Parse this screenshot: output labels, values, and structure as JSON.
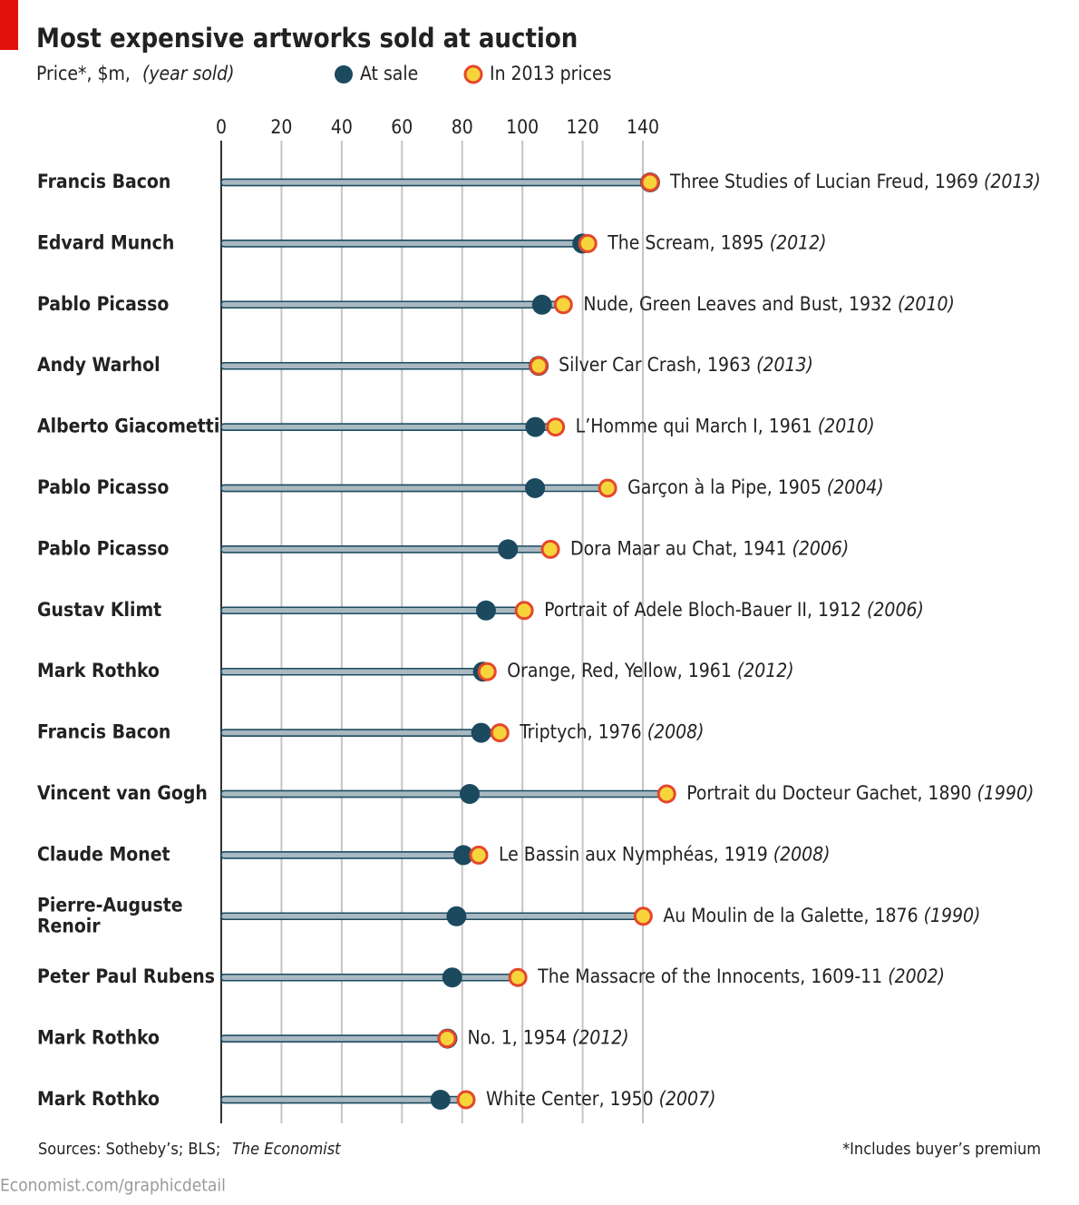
{
  "chart_data": {
    "type": "dot",
    "title": "Most expensive artworks sold at auction",
    "x_label": "Price*, $m,",
    "x_label_note": "(year sold)",
    "categories": [
      "Francis Bacon",
      "Edvard Munch",
      "Pablo Picasso",
      "Andy Warhol",
      "Alberto Giacometti",
      "Pablo Picasso",
      "Pablo Picasso",
      "Gustav Klimt",
      "Mark Rothko",
      "Francis Bacon",
      "Vincent van Gogh",
      "Claude Monet",
      "Pierre-Auguste Renoir",
      "Peter Paul Rubens",
      "Mark Rothko",
      "Mark Rothko"
    ],
    "artworks": [
      "Three Studies of Lucian Freud, 1969",
      "The Scream, 1895",
      "Nude, Green Leaves and Bust, 1932",
      "Silver Car Crash, 1963",
      "L’Homme qui March I, 1961",
      "Garçon à la Pipe, 1905",
      "Dora Maar au Chat, 1941",
      "Portrait of Adele Bloch-Bauer II, 1912",
      "Orange, Red, Yellow, 1961",
      "Triptych, 1976",
      "Portrait du Docteur Gachet, 1890",
      "Le Bassin aux Nymphéas, 1919",
      "Au Moulin de la Galette, 1876",
      "The Massacre of the Innocents, 1609-11",
      "No. 1, 1954",
      "White Center, 1950"
    ],
    "years_sold": [
      "(2013)",
      "(2012)",
      "(2010)",
      "(2013)",
      "(2010)",
      "(2004)",
      "(2006)",
      "(2006)",
      "(2012)",
      "(2008)",
      "(1990)",
      "(2008)",
      "(1990)",
      "(2002)",
      "(2012)",
      "(2007)"
    ],
    "series": [
      {
        "name": "At sale",
        "color": "#1b4a5f",
        "values": [
          142.4,
          119.9,
          106.5,
          105.4,
          104.3,
          104.2,
          95.2,
          87.9,
          86.9,
          86.3,
          82.5,
          80.4,
          78.1,
          76.7,
          75.1,
          72.8
        ]
      },
      {
        "name": "In 2013 prices",
        "color": "#f7d43c",
        "edge": "#e5472b",
        "values": [
          142.4,
          121.7,
          113.6,
          105.4,
          111.0,
          128.3,
          109.3,
          100.6,
          88.3,
          92.5,
          147.9,
          85.5,
          140.1,
          98.5,
          75.0,
          81.3
        ]
      }
    ],
    "xlim": [
      0,
      140
    ],
    "xticks": [
      0,
      20,
      40,
      60,
      80,
      100,
      120,
      140
    ],
    "grid": true,
    "source": "Sources: Sotheby’s; BLS;",
    "source_italic": "The Economist",
    "footnote": "*Includes buyer’s premium",
    "credit": "Economist.com/graphicdetail"
  }
}
